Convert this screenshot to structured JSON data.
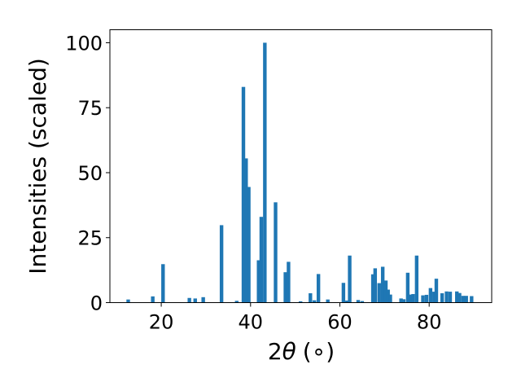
{
  "chart_data": {
    "type": "bar",
    "xlabel_main": "2",
    "xlabel_theta": "θ",
    "xlabel_unit": "(∘)",
    "ylabel": "Intensities (scaled)",
    "xlim": [
      8.5,
      94
    ],
    "ylim": [
      0,
      105
    ],
    "xticks": [
      20,
      40,
      60,
      80
    ],
    "yticks": [
      0,
      25,
      50,
      75,
      100
    ],
    "grid": false,
    "bar_color": "#1f77b4",
    "bar_width": 0.8,
    "x": [
      12.6,
      18.1,
      20.4,
      26.3,
      27.6,
      29.4,
      33.5,
      36.9,
      38.4,
      39.0,
      39.6,
      41.8,
      42.4,
      43.2,
      45.6,
      47.8,
      48.5,
      51.2,
      53.4,
      54.3,
      55.2,
      57.3,
      60.8,
      61.6,
      62.2,
      64.1,
      65.0,
      67.4,
      67.9,
      68.8,
      69.6,
      70.3,
      70.8,
      71.3,
      73.7,
      74.3,
      75.2,
      75.9,
      76.4,
      77.2,
      78.6,
      79.4,
      80.3,
      81.1,
      81.6,
      82.9,
      83.9,
      84.7,
      86.2,
      86.8,
      87.6,
      88.3,
      89.5
    ],
    "values": [
      1.2,
      2.4,
      14.8,
      1.8,
      1.6,
      2.1,
      29.8,
      0.7,
      83.0,
      55.5,
      44.5,
      16.3,
      33.0,
      100.0,
      38.6,
      11.7,
      15.7,
      0.5,
      3.6,
      0.9,
      11.0,
      1.2,
      7.6,
      0.8,
      18.1,
      1.0,
      0.6,
      10.9,
      13.2,
      7.5,
      13.8,
      8.5,
      5.0,
      3.1,
      1.6,
      1.3,
      11.5,
      3.1,
      3.3,
      18.1,
      2.8,
      3.0,
      5.6,
      4.2,
      9.2,
      3.6,
      4.3,
      4.2,
      4.3,
      3.7,
      2.6,
      2.6,
      2.5
    ]
  }
}
